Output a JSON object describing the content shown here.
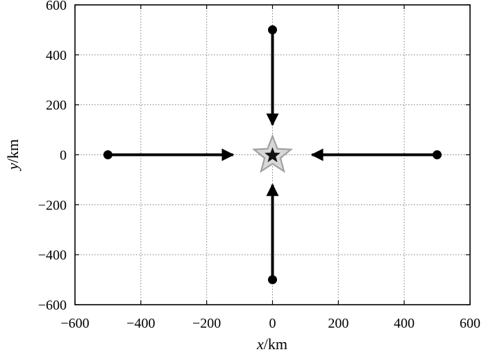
{
  "chart_data": {
    "type": "scatter",
    "xlabel_var": "x",
    "xlabel_unit": "/km",
    "ylabel_var": "y",
    "ylabel_unit": "/km",
    "xlim": [
      -600,
      600
    ],
    "ylim": [
      -600,
      600
    ],
    "x_ticks": [
      -600,
      -400,
      -200,
      0,
      200,
      400,
      600
    ],
    "y_ticks": [
      -600,
      -400,
      -200,
      0,
      200,
      400,
      600
    ],
    "x_tick_labels": [
      "−600",
      "−400",
      "−200",
      "0",
      "200",
      "400",
      "600"
    ],
    "y_tick_labels": [
      "−600",
      "−400",
      "−200",
      "0",
      "200",
      "400",
      "600"
    ],
    "grid": true,
    "sources": [
      {
        "x": 0,
        "y": 500
      },
      {
        "x": -500,
        "y": 0
      },
      {
        "x": 500,
        "y": 0
      },
      {
        "x": 0,
        "y": -500
      }
    ],
    "arrows": [
      {
        "from": [
          0,
          500
        ],
        "to": [
          0,
          120
        ]
      },
      {
        "from": [
          -500,
          0
        ],
        "to": [
          -120,
          0
        ]
      },
      {
        "from": [
          500,
          0
        ],
        "to": [
          120,
          0
        ]
      },
      {
        "from": [
          0,
          -500
        ],
        "to": [
          0,
          -120
        ]
      }
    ],
    "target": {
      "x": 0,
      "y": 0,
      "marker": "star"
    },
    "colors": {
      "marks": "#000000",
      "star_outer": "#a0a0a0",
      "star_inner": "#111111"
    }
  }
}
